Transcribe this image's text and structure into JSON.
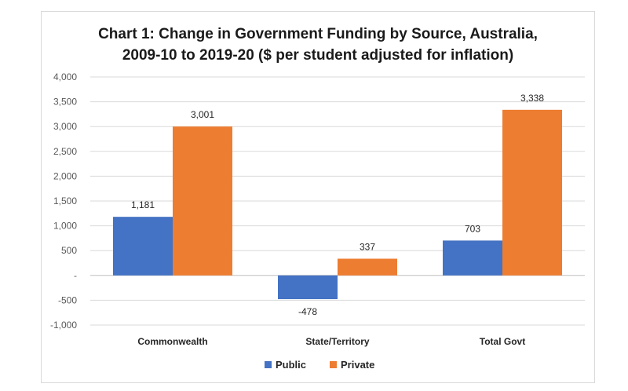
{
  "chart_data": {
    "type": "bar",
    "title_line1": "Chart 1: Change in Government Funding by Source, Australia,",
    "title_line2": "2009-10 to 2019-20 ($ per student adjusted for inflation)",
    "categories": [
      "Commonwealth",
      "State/Territory",
      "Total Govt"
    ],
    "series": [
      {
        "name": "Public",
        "values": [
          1181,
          -478,
          703
        ],
        "labels": [
          "1,181",
          "-478",
          "703"
        ],
        "color": "#4472c4"
      },
      {
        "name": "Private",
        "values": [
          3001,
          337,
          3338
        ],
        "labels": [
          "3,001",
          "337",
          "3,338"
        ],
        "color": "#ed7d31"
      }
    ],
    "ylim": [
      -1000,
      4000
    ],
    "yticks": [
      4000,
      3500,
      3000,
      2500,
      2000,
      1500,
      1000,
      500,
      0,
      -500,
      -1000
    ],
    "ytick_labels": [
      "4,000",
      "3,500",
      "3,000",
      "2,500",
      "2,000",
      "1,500",
      "1,000",
      "500",
      "-",
      "-500",
      "-1,000"
    ],
    "grid": true,
    "legend_position": "bottom"
  }
}
